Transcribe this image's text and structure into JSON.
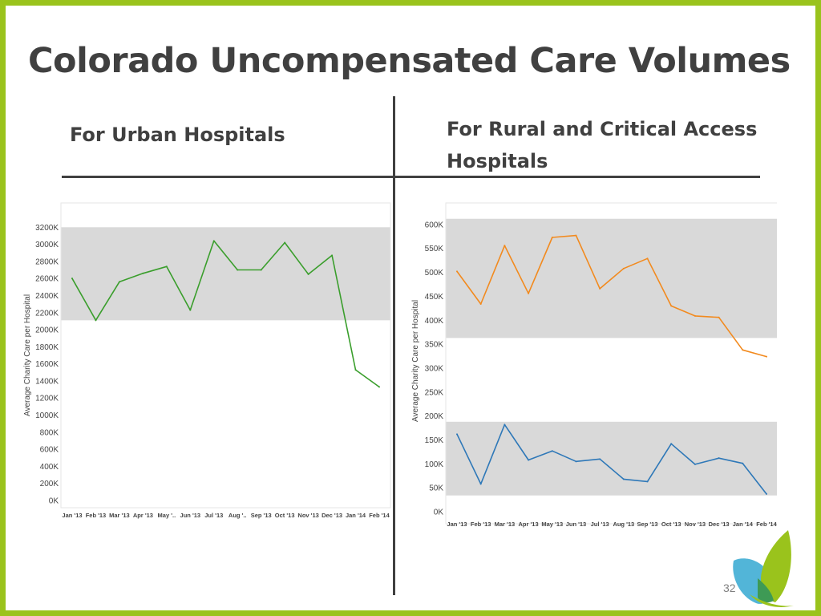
{
  "slide": {
    "title": "Colorado Uncompensated Care Volumes",
    "left_heading": "For Urban Hospitals",
    "right_heading": "For Rural and Critical Access Hospitals",
    "page_number": "32",
    "colors": {
      "border": "#9ac31c",
      "text": "#404040",
      "band": "#d9d9d9"
    }
  },
  "chart_data": [
    {
      "type": "line",
      "ylabel": "Average Charity Care per Hospital",
      "categories": [
        "Jan '13",
        "Feb '13",
        "Mar '13",
        "Apr '13",
        "May '..",
        "Jun '13",
        "Jul '13",
        "Aug '..",
        "Sep '13",
        "Oct '13",
        "Nov '13",
        "Dec '13",
        "Jan '14",
        "Feb '14"
      ],
      "ylim": [
        0,
        3400
      ],
      "yticks": [
        0,
        200,
        400,
        600,
        800,
        1000,
        1200,
        1400,
        1600,
        1800,
        2000,
        2200,
        2400,
        2600,
        2800,
        3000,
        3200
      ],
      "ytick_labels": [
        "0K",
        "200K",
        "400K",
        "600K",
        "800K",
        "1000K",
        "1200K",
        "1400K",
        "1600K",
        "1800K",
        "2000K",
        "2200K",
        "2400K",
        "2600K",
        "2800K",
        "3000K",
        "3200K"
      ],
      "bands": [
        [
          2110,
          3200
        ]
      ],
      "series": [
        {
          "color": "#3a9e2c",
          "values": [
            2600,
            2110,
            2560,
            2660,
            2740,
            2230,
            3040,
            2700,
            2700,
            3020,
            2650,
            2870,
            1530,
            1330
          ]
        }
      ]
    },
    {
      "type": "line",
      "ylabel": "Average Charity Care per Hospital",
      "categories": [
        "Jan '13",
        "Feb '13",
        "Mar '13",
        "Apr '13",
        "May '13",
        "Jun '13",
        "Jul '13",
        "Aug '13",
        "Sep '13",
        "Oct '13",
        "Nov '13",
        "Dec '13",
        "Jan '14",
        "Feb '14"
      ],
      "ylim": [
        0,
        630
      ],
      "yticks": [
        0,
        50,
        100,
        150,
        200,
        250,
        300,
        350,
        400,
        450,
        500,
        550,
        600
      ],
      "ytick_labels": [
        "0K",
        "50K",
        "100K",
        "150K",
        "200K",
        "250K",
        "300K",
        "350K",
        "400K",
        "450K",
        "500K",
        "550K",
        "600K"
      ],
      "bands": [
        [
          363,
          612
        ],
        [
          34,
          188
        ]
      ],
      "series": [
        {
          "color": "#f28a1e",
          "values": [
            502,
            434,
            556,
            456,
            573,
            577,
            466,
            508,
            529,
            430,
            409,
            406,
            338,
            324
          ]
        },
        {
          "color": "#2e78b8",
          "values": [
            162,
            58,
            182,
            108,
            127,
            105,
            110,
            68,
            63,
            142,
            99,
            112,
            101,
            37
          ]
        }
      ]
    }
  ]
}
